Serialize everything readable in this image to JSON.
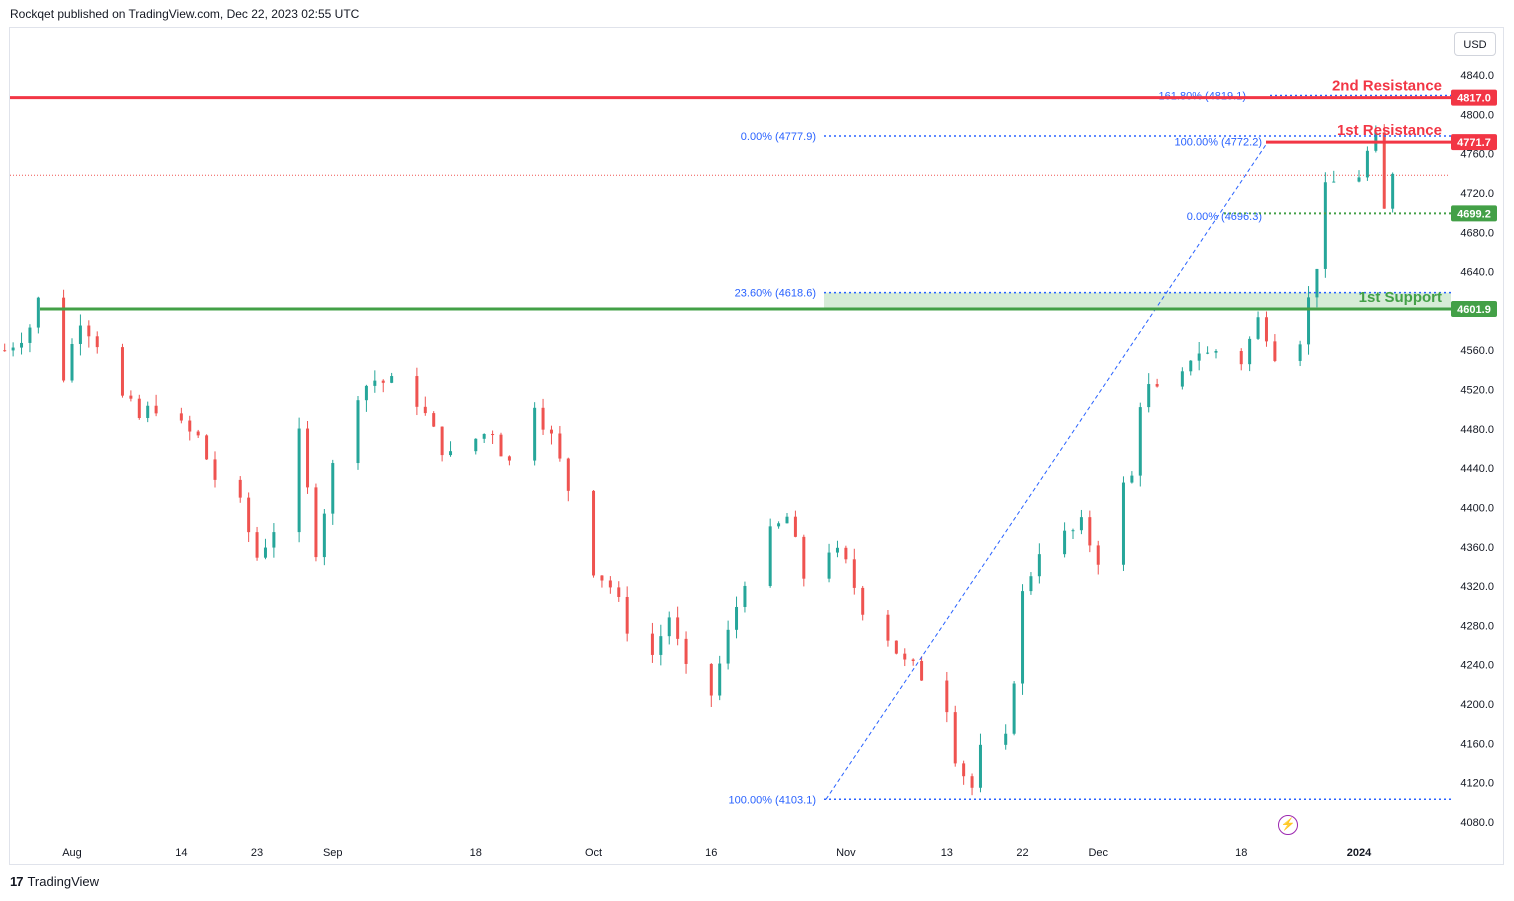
{
  "header": {
    "text": "Rockqet published on TradingView.com, Dec 22, 2023 02:55 UTC"
  },
  "footer": {
    "logo": "17",
    "brand": "TradingView"
  },
  "currency_button": "USD",
  "colors": {
    "bull": "#26a69a",
    "bear": "#ef5350",
    "resistance": "#f23645",
    "support": "#43a047",
    "fib": "#2962ff",
    "fib_text": "#2962ff",
    "zone": "#c8e6c9",
    "grid": "#ffffff",
    "axis_text": "#131722"
  },
  "chart_data": {
    "type": "candlestick",
    "symbol_currency": "USD",
    "y_ticks": [
      4840.0,
      4800.0,
      4760.0,
      4720.0,
      4680.0,
      4640.0,
      4600.0,
      4560.0,
      4520.0,
      4480.0,
      4440.0,
      4400.0,
      4360.0,
      4320.0,
      4280.0,
      4240.0,
      4200.0,
      4160.0,
      4120.0,
      4080.0
    ],
    "ylim": [
      4058,
      4862
    ],
    "x_ticks": [
      {
        "label": "Aug",
        "date": "2023-08-01"
      },
      {
        "label": "14",
        "date": "2023-08-14"
      },
      {
        "label": "23",
        "date": "2023-08-23"
      },
      {
        "label": "Sep",
        "date": "2023-09-01"
      },
      {
        "label": "18",
        "date": "2023-09-18"
      },
      {
        "label": "Oct",
        "date": "2023-10-02"
      },
      {
        "label": "16",
        "date": "2023-10-16"
      },
      {
        "label": "Nov",
        "date": "2023-11-01"
      },
      {
        "label": "13",
        "date": "2023-11-13"
      },
      {
        "label": "22",
        "date": "2023-11-22"
      },
      {
        "label": "Dec",
        "date": "2023-12-01"
      },
      {
        "label": "18",
        "date": "2023-12-18"
      },
      {
        "label": "2024",
        "date": "2024-01-01"
      }
    ],
    "price_path": [
      [
        "2023-07-24",
        4560
      ],
      [
        "2023-07-27",
        4585
      ],
      [
        "2023-07-28",
        4610
      ],
      [
        "2023-07-31",
        4535
      ],
      [
        "2023-08-02",
        4595
      ],
      [
        "2023-08-04",
        4570
      ],
      [
        "2023-08-07",
        4510
      ],
      [
        "2023-08-09",
        4490
      ],
      [
        "2023-08-11",
        4505
      ],
      [
        "2023-08-14",
        4480
      ],
      [
        "2023-08-16",
        4470
      ],
      [
        "2023-08-18",
        4430
      ],
      [
        "2023-08-21",
        4400
      ],
      [
        "2023-08-23",
        4350
      ],
      [
        "2023-08-25",
        4380
      ],
      [
        "2023-08-28",
        4470
      ],
      [
        "2023-08-30",
        4360
      ],
      [
        "2023-09-01",
        4440
      ],
      [
        "2023-09-04",
        4520
      ],
      [
        "2023-09-06",
        4530
      ],
      [
        "2023-09-08",
        4525
      ],
      [
        "2023-09-11",
        4510
      ],
      [
        "2023-09-13",
        4475
      ],
      [
        "2023-09-15",
        4450
      ],
      [
        "2023-09-18",
        4470
      ],
      [
        "2023-09-20",
        4480
      ],
      [
        "2023-09-21",
        4460
      ],
      [
        "2023-09-22",
        4445
      ],
      [
        "2023-09-25",
        4510
      ],
      [
        "2023-09-27",
        4470
      ],
      [
        "2023-09-28",
        4445
      ],
      [
        "2023-09-29",
        4420
      ],
      [
        "2023-10-02",
        4340
      ],
      [
        "2023-10-04",
        4320
      ],
      [
        "2023-10-06",
        4280
      ],
      [
        "2023-10-09",
        4250
      ],
      [
        "2023-10-11",
        4290
      ],
      [
        "2023-10-13",
        4230
      ],
      [
        "2023-10-16",
        4210
      ],
      [
        "2023-10-18",
        4270
      ],
      [
        "2023-10-20",
        4330
      ],
      [
        "2023-10-23",
        4370
      ],
      [
        "2023-10-25",
        4390
      ],
      [
        "2023-10-27",
        4330
      ],
      [
        "2023-10-30",
        4360
      ],
      [
        "2023-11-01",
        4340
      ],
      [
        "2023-11-03",
        4300
      ],
      [
        "2023-11-06",
        4270
      ],
      [
        "2023-11-08",
        4240
      ],
      [
        "2023-11-10",
        4230
      ],
      [
        "2023-11-13",
        4200
      ],
      [
        "2023-11-14",
        4150
      ],
      [
        "2023-11-15",
        4130
      ],
      [
        "2023-11-16",
        4115
      ],
      [
        "2023-11-17",
        4150
      ],
      [
        "2023-11-20",
        4160
      ],
      [
        "2023-11-21",
        4230
      ],
      [
        "2023-11-22",
        4310
      ],
      [
        "2023-11-24",
        4360
      ],
      [
        "2023-11-27",
        4370
      ],
      [
        "2023-11-29",
        4380
      ],
      [
        "2023-12-01",
        4350
      ],
      [
        "2023-12-04",
        4420
      ],
      [
        "2023-12-05",
        4430
      ],
      [
        "2023-12-06",
        4510
      ],
      [
        "2023-12-07",
        4520
      ],
      [
        "2023-12-08",
        4515
      ],
      [
        "2023-12-11",
        4530
      ],
      [
        "2023-12-12",
        4555
      ],
      [
        "2023-12-13",
        4560
      ],
      [
        "2023-12-14",
        4555
      ],
      [
        "2023-12-15",
        4560
      ],
      [
        "2023-12-18",
        4550
      ],
      [
        "2023-12-19",
        4570
      ],
      [
        "2023-12-20",
        4590
      ],
      [
        "2023-12-21",
        4580
      ],
      [
        "2023-12-22",
        4560
      ],
      [
        "2023-12-25",
        4575
      ],
      [
        "2023-12-26",
        4610
      ],
      [
        "2023-12-27",
        4650
      ],
      [
        "2023-12-28",
        4720
      ],
      [
        "2023-12-29",
        4730
      ],
      [
        "2024-01-01",
        4740
      ],
      [
        "2024-01-02",
        4760
      ],
      [
        "2024-01-03",
        4771.7
      ],
      [
        "2024-01-04",
        4700
      ],
      [
        "2024-01-05",
        4745
      ]
    ],
    "candle_x_range": [
      "2023-07-24",
      "2024-01-05"
    ],
    "levels": [
      {
        "label": "2nd Resistance",
        "price": "4817.0",
        "value": 4817.0,
        "kind": "resistance"
      },
      {
        "label": "1st Resistance",
        "price": "4771.7",
        "value": 4771.7,
        "kind": "resistance"
      },
      {
        "label": "",
        "price": "4699.2",
        "value": 4699.2,
        "kind": "support-dotted"
      },
      {
        "label": "1st Support",
        "price": "4601.9",
        "value": 4601.9,
        "kind": "support"
      }
    ],
    "fib_labels": [
      {
        "text": "161.80% (4819.1)",
        "value": 4819.1
      },
      {
        "text": "0.00% (4777.9)",
        "value": 4777.9
      },
      {
        "text": "100.00% (4772.2)",
        "value": 4772.2
      },
      {
        "text": "0.00% (4696.3)",
        "value": 4696.3
      },
      {
        "text": "23.60% (4618.6)",
        "value": 4618.6
      },
      {
        "text": "100.00% (4103.1)",
        "value": 4103.1
      }
    ],
    "support_zone": [
      4601.9,
      4618.6
    ],
    "last_price_line": 4738,
    "grid": false
  }
}
